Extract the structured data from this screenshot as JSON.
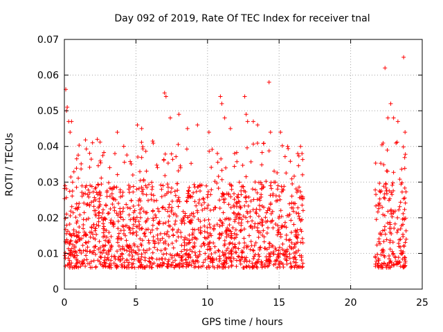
{
  "chart_data": {
    "type": "scatter",
    "title": "Day 092 of 2019, Rate Of TEC Index for receiver tnal",
    "xlabel": "GPS time / hours",
    "ylabel": "ROTI / TECUs",
    "xlim": [
      0,
      25
    ],
    "ylim": [
      0,
      0.07
    ],
    "xticks": [
      0,
      5,
      10,
      15,
      20,
      25
    ],
    "xtick_labels": [
      "0",
      "5",
      "10",
      "15",
      "20",
      "25"
    ],
    "yticks": [
      0,
      0.01,
      0.02,
      0.03,
      0.04,
      0.05,
      0.06,
      0.07
    ],
    "ytick_labels": [
      "0",
      "0.01",
      "0.02",
      "0.03",
      "0.04",
      "0.05",
      "0.06",
      "0.07"
    ],
    "grid": true,
    "marker": "+",
    "color": "#ff0000",
    "series": [
      {
        "name": "ROTI",
        "data_coverage_hours": [
          [
            0.0,
            16.7
          ],
          [
            21.7,
            23.9
          ]
        ],
        "typical_range": [
          0.006,
          0.03
        ],
        "x": [
          0.1,
          0.15,
          0.2,
          0.3,
          0.4,
          0.5,
          2.3,
          3.7,
          5.1,
          5.4,
          7.0,
          7.1,
          7.4,
          8.0,
          8.6,
          9.3,
          10.1,
          10.9,
          11.0,
          11.2,
          11.6,
          12.6,
          12.7,
          12.8,
          13.2,
          13.5,
          14.3,
          14.4,
          15.1,
          15.6,
          16.3,
          16.5,
          16.6,
          22.4,
          22.6,
          22.8,
          23.0,
          23.3,
          23.7,
          23.8
        ],
        "y": [
          0.056,
          0.05,
          0.051,
          0.047,
          0.044,
          0.047,
          0.042,
          0.044,
          0.046,
          0.045,
          0.055,
          0.054,
          0.048,
          0.049,
          0.045,
          0.046,
          0.044,
          0.054,
          0.052,
          0.048,
          0.045,
          0.054,
          0.049,
          0.047,
          0.047,
          0.046,
          0.058,
          0.044,
          0.044,
          0.04,
          0.038,
          0.04,
          0.038,
          0.062,
          0.048,
          0.052,
          0.048,
          0.047,
          0.065,
          0.044
        ]
      }
    ]
  }
}
